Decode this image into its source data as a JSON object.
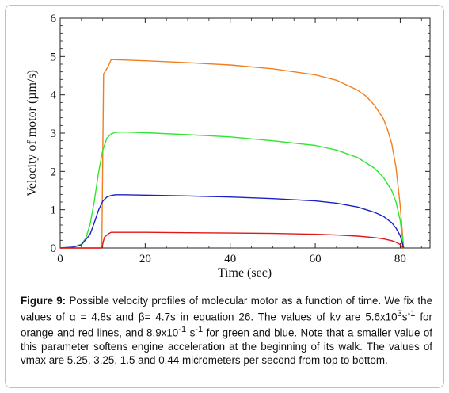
{
  "chart_data": {
    "type": "line",
    "xlabel": "Time (sec)",
    "ylabel": "Velocity of motor (µm/s)",
    "xlim": [
      0,
      87
    ],
    "ylim": [
      0,
      6
    ],
    "x_ticks": [
      0,
      20,
      40,
      60,
      80
    ],
    "y_ticks": [
      0,
      1,
      2,
      3,
      4,
      5,
      6
    ],
    "grid": false,
    "series": [
      {
        "color": "#f07f1f",
        "x": [
          0,
          9.8,
          10.2,
          11.2,
          12,
          15,
          20,
          30,
          40,
          50,
          60,
          65,
          70,
          72,
          74,
          76,
          77,
          78,
          79,
          80,
          80.8
        ],
        "y": [
          0,
          0,
          4.55,
          4.72,
          4.92,
          4.91,
          4.89,
          4.84,
          4.78,
          4.68,
          4.52,
          4.38,
          4.12,
          3.96,
          3.72,
          3.38,
          3.1,
          2.72,
          2.1,
          1.1,
          0
        ]
      },
      {
        "color": "#2ee62e",
        "x": [
          0,
          3,
          5,
          6,
          7,
          8,
          9,
          10,
          11,
          12,
          13,
          15,
          20,
          30,
          40,
          50,
          60,
          65,
          70,
          74,
          76,
          78,
          79,
          80,
          80.8
        ],
        "y": [
          0,
          0.02,
          0.1,
          0.25,
          0.6,
          1.2,
          1.95,
          2.55,
          2.87,
          2.98,
          3.02,
          3.03,
          3.01,
          2.96,
          2.9,
          2.8,
          2.68,
          2.56,
          2.36,
          2.08,
          1.85,
          1.5,
          1.2,
          0.72,
          0
        ]
      },
      {
        "color": "#1c20c8",
        "x": [
          0,
          3,
          5,
          7,
          8,
          9,
          10,
          11,
          12,
          13,
          15,
          20,
          30,
          40,
          50,
          60,
          65,
          70,
          74,
          76,
          78,
          79,
          80,
          80.8
        ],
        "y": [
          0,
          0.02,
          0.08,
          0.35,
          0.65,
          0.98,
          1.22,
          1.33,
          1.37,
          1.39,
          1.39,
          1.38,
          1.36,
          1.33,
          1.29,
          1.23,
          1.17,
          1.07,
          0.93,
          0.83,
          0.66,
          0.52,
          0.32,
          0
        ]
      },
      {
        "color": "#e01818",
        "x": [
          0,
          9.8,
          10.4,
          11.5,
          12,
          15,
          20,
          30,
          40,
          50,
          60,
          65,
          70,
          74,
          76,
          78,
          79,
          80,
          80.8
        ],
        "y": [
          0,
          0,
          0.28,
          0.38,
          0.41,
          0.41,
          0.41,
          0.4,
          0.39,
          0.38,
          0.36,
          0.34,
          0.31,
          0.27,
          0.24,
          0.19,
          0.15,
          0.09,
          0
        ]
      }
    ]
  },
  "caption": {
    "label": "Figure 9:",
    "text_1": " Possible velocity profiles of molecular motor as a function of time. We fix the values of α = 4.8s and β= 4.7s in equation 26. The values of kv are 5.6x10",
    "sup_1": "3",
    "text_2": "s",
    "sup_2": "-1",
    "text_3": " for orange and red lines, and 8.9x10",
    "sup_3": "-1",
    "text_4": " s",
    "sup_4": "-1",
    "text_5": " for green and blue. Note that a smaller value of this parameter softens engine acceleration at the beginning of its walk. The values of vmax are 5.25, 3.25, 1.5 and 0.44 micrometers per second from top to bottom."
  }
}
